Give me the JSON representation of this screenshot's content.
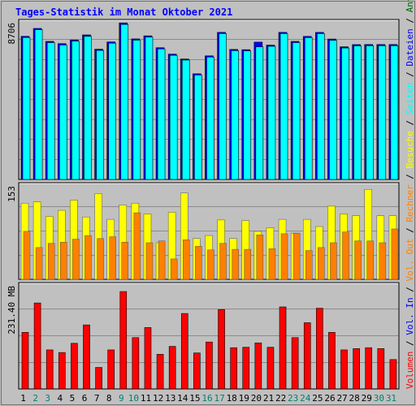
{
  "chart_data": [
    {
      "type": "bar",
      "title": "Tages-Statistik im Monat Oktober 2021",
      "categories": [
        "1",
        "2",
        "3",
        "4",
        "5",
        "6",
        "7",
        "8",
        "9",
        "10",
        "11",
        "12",
        "13",
        "14",
        "15",
        "16",
        "17",
        "18",
        "19",
        "20",
        "21",
        "22",
        "23",
        "24",
        "25",
        "26",
        "27",
        "28",
        "29",
        "30",
        "31"
      ],
      "weekend_days": [
        "2",
        "3",
        "9",
        "10",
        "16",
        "17",
        "23",
        "24",
        "30",
        "31"
      ],
      "colors": {
        "title": "#0000ff",
        "weekday_label": "#000000",
        "weekend_label": "#00806e",
        "hits": "#006600",
        "files": "#0000ff",
        "pages": "#00ffff",
        "visits": "#ffff00",
        "sites": "#ff8000",
        "kbin": "#0000ff",
        "kbout": "#ff8000",
        "volume": "#ff0000",
        "grid": "#000000"
      },
      "panels": [
        {
          "name": "Anfragen / Dateien / Seiten",
          "ymax_label": "8706",
          "ylim": [
            0,
            8706
          ],
          "series": [
            {
              "name": "Anfragen",
              "values": [
                8035,
                8478,
                7750,
                7625,
                7833,
                8116,
                7312,
                7719,
                8787,
                7891,
                8062,
                7396,
                7036,
                6761,
                5932,
                6939,
                8257,
                7299,
                7286,
                7708,
                7542,
                8257,
                7750,
                8032,
                8255,
                7883,
                7448,
                7570,
                7576,
                7576,
                7576
              ]
            },
            {
              "name": "Dateien",
              "values": [
                7966,
                8409,
                7681,
                7547,
                7764,
                8035,
                7243,
                7650,
                8700,
                7822,
                7993,
                7327,
                6967,
                6701,
                5863,
                6870,
                8188,
                7230,
                7217,
                7442,
                7473,
                8188,
                7681,
                7963,
                8187,
                7814,
                7379,
                7501,
                7507,
                7507,
                7507
              ]
            },
            {
              "name": "Seiten",
              "values": [
                7966,
                8409,
                7681,
                7547,
                7764,
                8035,
                7243,
                7650,
                8700,
                7822,
                7993,
                7327,
                6967,
                6701,
                5863,
                6870,
                8188,
                7230,
                7217,
                7442,
                7473,
                8188,
                7681,
                7963,
                8187,
                7814,
                7379,
                7501,
                7507,
                7507,
                7507
              ]
            }
          ]
        },
        {
          "name": "Besuche / Rechner",
          "ymax_label": "153",
          "ylim": [
            0,
            153
          ],
          "series": [
            {
              "name": "Besuche",
              "values": [
                127,
                129,
                105,
                115,
                132,
                104,
                143,
                100,
                124,
                127,
                109,
                61,
                112,
                144,
                68,
                73,
                99,
                68,
                98,
                80,
                86,
                100,
                77,
                100,
                88,
                122,
                109,
                106,
                150,
                106,
                106
              ]
            },
            {
              "name": "Rechner",
              "values": [
                80,
                53,
                60,
                62,
                67,
                73,
                68,
                71,
                62,
                111,
                61,
                64,
                34,
                66,
                55,
                49,
                60,
                50,
                50,
                74,
                51,
                76,
                77,
                48,
                53,
                61,
                79,
                64,
                64,
                61,
                84
              ]
            }
          ]
        },
        {
          "name": "Volumen / Vol. In / Vol. Out",
          "ymax_label": "231.40 MB",
          "ylim": [
            0,
            231.4
          ],
          "series": [
            {
              "name": "Volumen",
              "values": [
                129,
                196,
                89,
                83,
                104,
                146,
                49,
                89,
                222,
                117,
                140,
                79,
                97,
                172,
                82,
                107,
                181,
                94,
                95,
                105,
                95,
                187,
                117,
                151,
                184,
                129,
                89,
                92,
                94,
                92,
                67
              ]
            }
          ]
        }
      ],
      "legend": [
        {
          "label": "Volumen",
          "color": "#ff0000"
        },
        {
          "label": " / ",
          "color": "#000000"
        },
        {
          "label": "Vol. In",
          "color": "#0000ff"
        },
        {
          "label": " / ",
          "color": "#000000"
        },
        {
          "label": "Vol. Out",
          "color": "#ff8000"
        },
        {
          "label": " / ",
          "color": "#000000"
        },
        {
          "label": "Rechner",
          "color": "#ff8000"
        },
        {
          "label": " / ",
          "color": "#000000"
        },
        {
          "label": "Besuche",
          "color": "#ffff00"
        },
        {
          "label": " / ",
          "color": "#000000"
        },
        {
          "label": "Seiten",
          "color": "#00ffff"
        },
        {
          "label": " / ",
          "color": "#000000"
        },
        {
          "label": "Dateien",
          "color": "#0000ff"
        },
        {
          "label": " / ",
          "color": "#000000"
        },
        {
          "label": "Anfragen",
          "color": "#006600"
        }
      ]
    }
  ]
}
